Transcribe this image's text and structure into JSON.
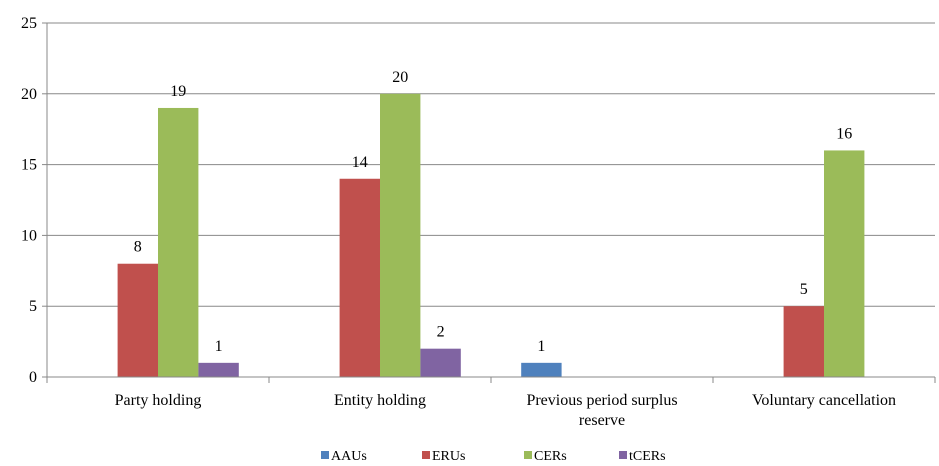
{
  "chart_data": {
    "type": "bar",
    "categories": [
      [
        "Party holding"
      ],
      [
        "Entity holding"
      ],
      [
        "Previous period surplus",
        "reserve"
      ],
      [
        "Voluntary cancellation"
      ]
    ],
    "series": [
      {
        "name": "AAUs",
        "color": "#4f81bd",
        "values": [
          null,
          null,
          1,
          null
        ]
      },
      {
        "name": "ERUs",
        "color": "#c0504d",
        "values": [
          8,
          14,
          null,
          5
        ]
      },
      {
        "name": "CERs",
        "color": "#9bbb59",
        "values": [
          19,
          20,
          null,
          16
        ]
      },
      {
        "name": "tCERs",
        "color": "#8064a2",
        "values": [
          1,
          2,
          null,
          null
        ]
      }
    ],
    "ylim": [
      0,
      25
    ],
    "yticks": [
      0,
      5,
      10,
      15,
      20,
      25
    ],
    "grid": true,
    "legend_position": "bottom"
  }
}
